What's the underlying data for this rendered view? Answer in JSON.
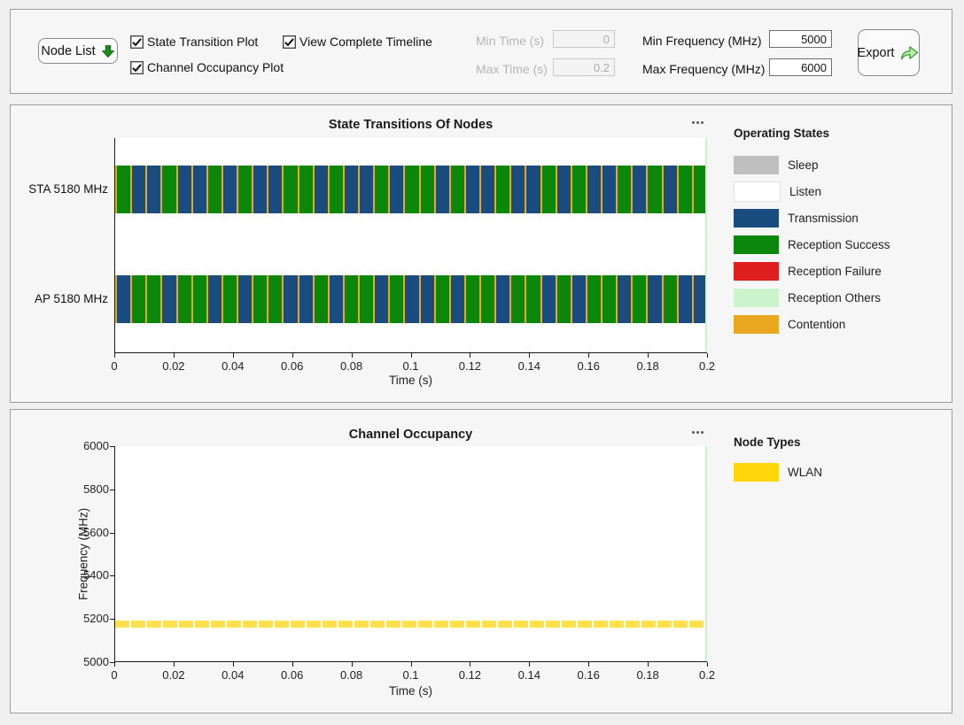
{
  "toolbar": {
    "node_list_label": "Node List",
    "export_label": "Export",
    "checkboxes": [
      {
        "label": "State Transition Plot",
        "checked": true
      },
      {
        "label": "Channel Occupancy Plot",
        "checked": true
      },
      {
        "label": "View Complete Timeline",
        "checked": true
      }
    ],
    "fields": [
      {
        "label": "Min Time (s)",
        "value": "0",
        "disabled": true
      },
      {
        "label": "Max Time (s)",
        "value": "0.2",
        "disabled": true
      },
      {
        "label": "Min Frequency (MHz)",
        "value": "5000",
        "disabled": false
      },
      {
        "label": "Max Frequency (MHz)",
        "value": "6000",
        "disabled": false
      }
    ]
  },
  "colors": {
    "sleep": "#BFBFBF",
    "listen": "#FFFFFF",
    "transmission": "#1B4C80",
    "reception_success": "#0B870B",
    "reception_failure": "#DF1E1E",
    "reception_others": "#CCF4CC",
    "contention": "#E9A820",
    "wlan": "#FFD60A",
    "timeline_edge": "#CCF4CC"
  },
  "state_plot": {
    "title": "State Transitions Of Nodes",
    "xlabel": "Time (s)",
    "x_ticks": [
      "0",
      "0.02",
      "0.04",
      "0.06",
      "0.08",
      "0.1",
      "0.12",
      "0.14",
      "0.16",
      "0.18",
      "0.2"
    ],
    "rows": [
      {
        "label": "STA 5180 MHz",
        "segments": [
          "RS",
          "T",
          "T",
          "RS",
          "T",
          "T",
          "RS",
          "T",
          "RS",
          "T",
          "T",
          "RS",
          "RS",
          "T",
          "RS",
          "T",
          "T",
          "RS",
          "T",
          "RS",
          "RS",
          "T",
          "RS",
          "T",
          "T",
          "RS",
          "T",
          "T",
          "RS",
          "T",
          "RS",
          "T",
          "T",
          "RS",
          "T",
          "RS",
          "T",
          "RS",
          "RS"
        ]
      },
      {
        "label": "AP 5180 MHz",
        "segments": [
          "T",
          "RS",
          "RS",
          "T",
          "RS",
          "RS",
          "T",
          "RS",
          "T",
          "RS",
          "RS",
          "T",
          "T",
          "RS",
          "T",
          "RS",
          "RS",
          "T",
          "RS",
          "T",
          "T",
          "RS",
          "T",
          "RS",
          "RS",
          "T",
          "RS",
          "RS",
          "T",
          "RS",
          "T",
          "RS",
          "RS",
          "T",
          "RS",
          "T",
          "RS",
          "T",
          "T"
        ]
      }
    ],
    "legend": {
      "title": "Operating States",
      "items": [
        {
          "label": "Sleep",
          "color": "#BFBFBF"
        },
        {
          "label": "Listen",
          "color": "#FFFFFF"
        },
        {
          "label": "Transmission",
          "color": "#1B4C80"
        },
        {
          "label": "Reception Success",
          "color": "#0B870B"
        },
        {
          "label": "Reception Failure",
          "color": "#DF1E1E"
        },
        {
          "label": "Reception Others",
          "color": "#CCF4CC"
        },
        {
          "label": "Contention",
          "color": "#E9A820"
        }
      ]
    }
  },
  "occupancy_plot": {
    "title": "Channel Occupancy",
    "xlabel": "Time (s)",
    "ylabel": "Frequency (MHz)",
    "x_ticks": [
      "0",
      "0.02",
      "0.04",
      "0.06",
      "0.08",
      "0.1",
      "0.12",
      "0.14",
      "0.16",
      "0.18",
      "0.2"
    ],
    "y_ticks_desc": [
      "6000",
      "5800",
      "5600",
      "5400",
      "5200",
      "5000"
    ],
    "band": {
      "label": "WLAN",
      "freq_low": 5170,
      "freq_high": 5190,
      "fill": "#FFE04D",
      "separator": "#FFFFFF"
    },
    "legend": {
      "title": "Node Types",
      "items": [
        {
          "label": "WLAN",
          "color": "#FFD60A"
        }
      ]
    }
  },
  "chart_data": [
    {
      "type": "timeline",
      "title": "State Transitions Of Nodes",
      "xlabel": "Time (s)",
      "xlim": [
        0,
        0.2
      ],
      "x_ticks": [
        0,
        0.02,
        0.04,
        0.06,
        0.08,
        0.1,
        0.12,
        0.14,
        0.16,
        0.18,
        0.2
      ],
      "rows": [
        "STA 5180 MHz",
        "AP 5180 MHz"
      ],
      "legend": [
        "Sleep",
        "Listen",
        "Transmission",
        "Reception Success",
        "Reception Failure",
        "Reception Others",
        "Contention"
      ],
      "legend_position": "right",
      "series_note": "Bars alternate Transmission and Reception Success segments over 0-0.2 s; STA and AP patterns are complementary, with thin Contention slivers at segment boundaries"
    },
    {
      "type": "occupancy",
      "title": "Channel Occupancy",
      "xlabel": "Time (s)",
      "ylabel": "Frequency (MHz)",
      "xlim": [
        0,
        0.2
      ],
      "ylim": [
        5000,
        6000
      ],
      "y_ticks": [
        5000,
        5200,
        5400,
        5600,
        5800,
        6000
      ],
      "bands": [
        {
          "label": "WLAN",
          "freq_range": [
            5170,
            5190
          ],
          "time_range": [
            0,
            0.2
          ]
        }
      ],
      "legend": [
        "WLAN"
      ],
      "legend_position": "right"
    }
  ]
}
